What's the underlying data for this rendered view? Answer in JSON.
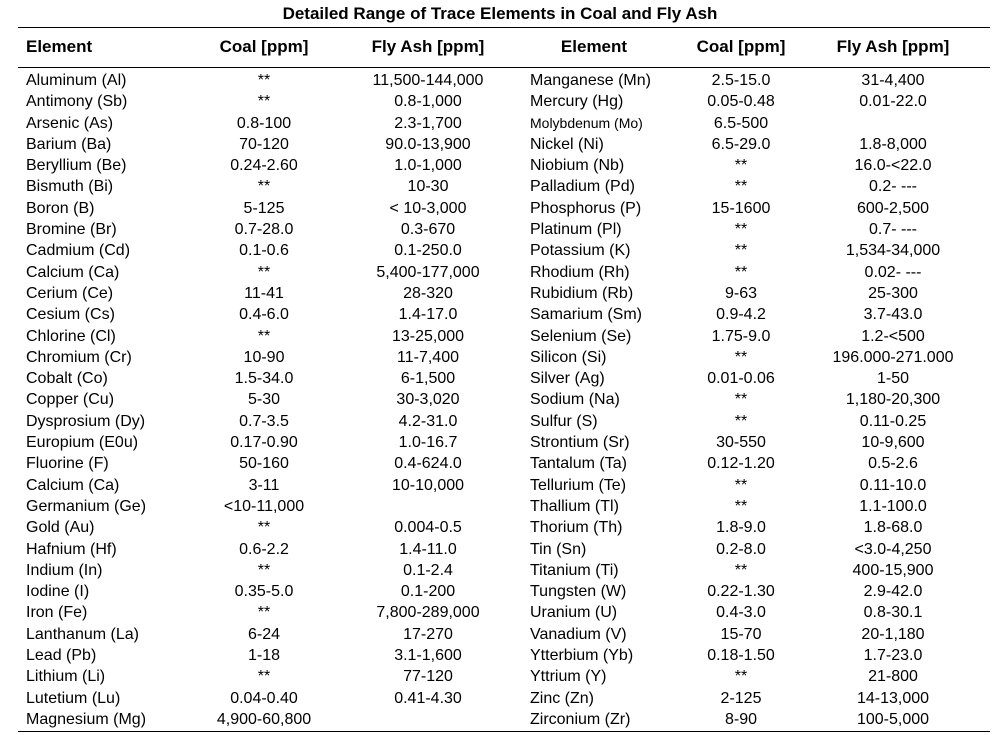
{
  "title": "Detailed Range of Trace Elements in Coal and Fly Ash",
  "headers": {
    "element_1": "Element",
    "coal_1": "Coal [ppm]",
    "fly_1": "Fly Ash [ppm]",
    "element_2": "Element",
    "coal_2": "Coal [ppm]",
    "fly_2": "Fly Ash [ppm]"
  },
  "rows": [
    {
      "el1": "Aluminum (Al)",
      "coal1": "**",
      "fly1": "11,500-144,000",
      "el2": "Manganese (Mn)",
      "coal2": "2.5-15.0",
      "fly2": "31-4,400"
    },
    {
      "el1": "Antimony (Sb)",
      "coal1": "**",
      "fly1": "0.8-1,000",
      "el2": "Mercury (Hg)",
      "coal2": "0.05-0.48",
      "fly2": "0.01-22.0"
    },
    {
      "el1": "Arsenic (As)",
      "coal1": "0.8-100",
      "fly1": "2.3-1,700",
      "el2": "Molybdenum (Mo)",
      "coal2": "6.5-500",
      "fly2": ""
    },
    {
      "el1": "Barium (Ba)",
      "coal1": "70-120",
      "fly1": "90.0-13,900",
      "el2": "Nickel (Ni)",
      "coal2": "6.5-29.0",
      "fly2": "1.8-8,000"
    },
    {
      "el1": "Beryllium (Be)",
      "coal1": "0.24-2.60",
      "fly1": "1.0-1,000",
      "el2": "Niobium (Nb)",
      "coal2": "**",
      "fly2": "16.0-<22.0"
    },
    {
      "el1": "Bismuth (Bi)",
      "coal1": "**",
      "fly1": "10-30",
      "el2": "Palladium (Pd)",
      "coal2": "**",
      "fly2": "0.2- ---"
    },
    {
      "el1": "Boron (B)",
      "coal1": "5-125",
      "fly1": "< 10-3,000",
      "el2": "Phosphorus (P)",
      "coal2": "15-1600",
      "fly2": "600-2,500"
    },
    {
      "el1": "Bromine (Br)",
      "coal1": "0.7-28.0",
      "fly1": "0.3-670",
      "el2": "Platinum (Pl)",
      "coal2": "**",
      "fly2": "0.7- ---"
    },
    {
      "el1": "Cadmium (Cd)",
      "coal1": "0.1-0.6",
      "fly1": "0.1-250.0",
      "el2": "Potassium (K)",
      "coal2": "**",
      "fly2": "1,534-34,000"
    },
    {
      "el1": "Calcium (Ca)",
      "coal1": "**",
      "fly1": "5,400-177,000",
      "el2": "Rhodium (Rh)",
      "coal2": "**",
      "fly2": "0.02- ---"
    },
    {
      "el1": "Cerium (Ce)",
      "coal1": "11-41",
      "fly1": "28-320",
      "el2": "Rubidium (Rb)",
      "coal2": "9-63",
      "fly2": "25-300"
    },
    {
      "el1": "Cesium (Cs)",
      "coal1": "0.4-6.0",
      "fly1": "1.4-17.0",
      "el2": "Samarium (Sm)",
      "coal2": "0.9-4.2",
      "fly2": "3.7-43.0"
    },
    {
      "el1": "Chlorine (Cl)",
      "coal1": "**",
      "fly1": "13-25,000",
      "el2": "Selenium (Se)",
      "coal2": "1.75-9.0",
      "fly2": "1.2-<500"
    },
    {
      "el1": "Chromium (Cr)",
      "coal1": "10-90",
      "fly1": "11-7,400",
      "el2": "Silicon (Si)",
      "coal2": "**",
      "fly2": "196.000-271.000"
    },
    {
      "el1": "Cobalt (Co)",
      "coal1": "1.5-34.0",
      "fly1": "6-1,500",
      "el2": "Silver (Ag)",
      "coal2": "0.01-0.06",
      "fly2": "1-50"
    },
    {
      "el1": "Copper (Cu)",
      "coal1": "5-30",
      "fly1": "30-3,020",
      "el2": "Sodium (Na)",
      "coal2": "**",
      "fly2": "1,180-20,300"
    },
    {
      "el1": "Dysprosium (Dy)",
      "coal1": "0.7-3.5",
      "fly1": "4.2-31.0",
      "el2": "Sulfur (S)",
      "coal2": "**",
      "fly2": "0.11-0.25"
    },
    {
      "el1": "Europium (E0u)",
      "coal1": "0.17-0.90",
      "fly1": "1.0-16.7",
      "el2": "Strontium (Sr)",
      "coal2": "30-550",
      "fly2": "10-9,600"
    },
    {
      "el1": "Fluorine (F)",
      "coal1": "50-160",
      "fly1": "0.4-624.0",
      "el2": "Tantalum (Ta)",
      "coal2": "0.12-1.20",
      "fly2": "0.5-2.6"
    },
    {
      "el1": "Calcium (Ca)",
      "coal1": "3-11",
      "fly1": "10-10,000",
      "el2": "Tellurium (Te)",
      "coal2": "**",
      "fly2": "0.11-10.0"
    },
    {
      "el1": "Germanium (Ge)",
      "coal1": "<10-11,000",
      "fly1": "",
      "el2": "Thallium (Tl)",
      "coal2": "**",
      "fly2": "1.1-100.0"
    },
    {
      "el1": "Gold (Au)",
      "coal1": "**",
      "fly1": "0.004-0.5",
      "el2": "Thorium (Th)",
      "coal2": "1.8-9.0",
      "fly2": "1.8-68.0"
    },
    {
      "el1": "Hafnium (Hf)",
      "coal1": "0.6-2.2",
      "fly1": "1.4-11.0",
      "el2": "Tin (Sn)",
      "coal2": "0.2-8.0",
      "fly2": "<3.0-4,250"
    },
    {
      "el1": "Indium (In)",
      "coal1": "**",
      "fly1": "0.1-2.4",
      "el2": "Titanium (Ti)",
      "coal2": "**",
      "fly2": "400-15,900"
    },
    {
      "el1": "Iodine (I)",
      "coal1": "0.35-5.0",
      "fly1": "0.1-200",
      "el2": "Tungsten (W)",
      "coal2": "0.22-1.30",
      "fly2": "2.9-42.0"
    },
    {
      "el1": "Iron (Fe)",
      "coal1": "**",
      "fly1": "7,800-289,000",
      "el2": "Uranium (U)",
      "coal2": "0.4-3.0",
      "fly2": "0.8-30.1"
    },
    {
      "el1": "Lanthanum (La)",
      "coal1": "6-24",
      "fly1": "17-270",
      "el2": "Vanadium (V)",
      "coal2": "15-70",
      "fly2": "20-1,180"
    },
    {
      "el1": "Lead (Pb)",
      "coal1": "1-18",
      "fly1": "3.1-1,600",
      "el2": "Ytterbium (Yb)",
      "coal2": "0.18-1.50",
      "fly2": "1.7-23.0"
    },
    {
      "el1": "Lithium (Li)",
      "coal1": "**",
      "fly1": "77-120",
      "el2": "Yttrium (Y)",
      "coal2": "**",
      "fly2": "21-800"
    },
    {
      "el1": "Lutetium (Lu)",
      "coal1": "0.04-0.40",
      "fly1": "0.41-4.30",
      "el2": "Zinc (Zn)",
      "coal2": "2-125",
      "fly2": "14-13,000"
    },
    {
      "el1": "Magnesium (Mg)",
      "coal1": "4,900-60,800",
      "fly1": "",
      "el2": "Zirconium (Zr)",
      "coal2": "8-90",
      "fly2": "100-5,000"
    }
  ]
}
